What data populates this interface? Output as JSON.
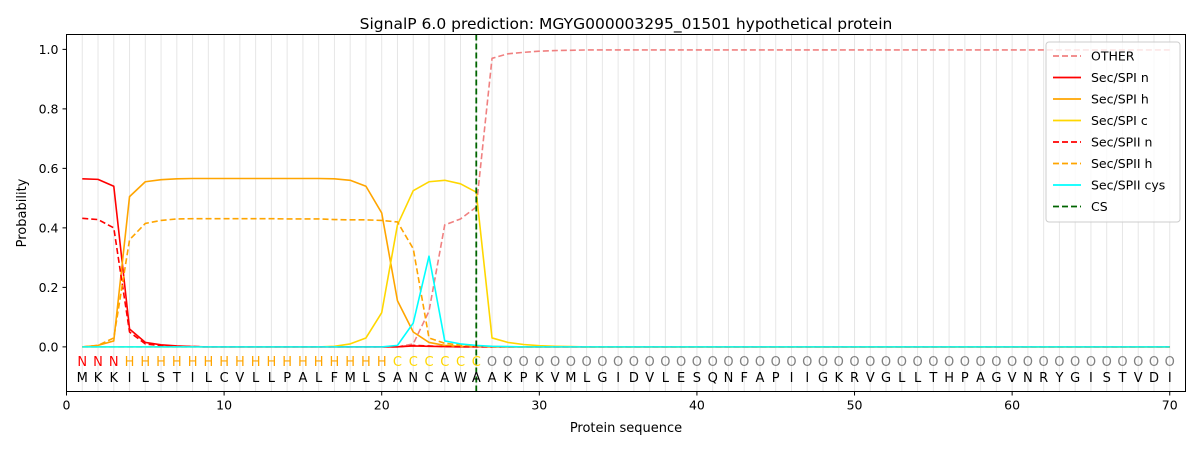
{
  "chart_data": {
    "type": "line",
    "title": "SignalP 6.0 prediction: MGYG000003295_01501 hypothetical protein",
    "xlabel": "Protein sequence",
    "ylabel": "Probability",
    "xlim": [
      0,
      71
    ],
    "ylim": [
      -0.15,
      1.05
    ],
    "x_ticks": [
      0,
      10,
      20,
      30,
      40,
      50,
      60,
      70
    ],
    "y_ticks": [
      0.0,
      0.2,
      0.4,
      0.6,
      0.8,
      1.0
    ],
    "x_tick_labels": [
      "0",
      "10",
      "20",
      "30",
      "40",
      "50",
      "60",
      "70"
    ],
    "y_tick_labels": [
      "0.0",
      "0.2",
      "0.4",
      "0.6",
      "0.8",
      "1.0"
    ],
    "grid": "vertical lines at every residue",
    "legend_position": "top-right",
    "sequence": [
      "M",
      "K",
      "K",
      "I",
      "L",
      "S",
      "T",
      "I",
      "L",
      "C",
      "V",
      "L",
      "L",
      "P",
      "A",
      "L",
      "F",
      "M",
      "L",
      "S",
      "A",
      "N",
      "C",
      "A",
      "W",
      "A",
      "A",
      "K",
      "P",
      "K",
      "V",
      "M",
      "L",
      "G",
      "I",
      "D",
      "V",
      "L",
      "E",
      "S",
      "Q",
      "N",
      "F",
      "A",
      "P",
      "I",
      "I",
      "G",
      "K",
      "R",
      "V",
      "G",
      "L",
      "L",
      "T",
      "H",
      "P",
      "A",
      "G",
      "V",
      "N",
      "R",
      "Y",
      "G",
      "I",
      "S",
      "T",
      "V",
      "D",
      "I"
    ],
    "region_labels": [
      "N",
      "N",
      "N",
      "H",
      "H",
      "H",
      "H",
      "H",
      "H",
      "H",
      "H",
      "H",
      "H",
      "H",
      "H",
      "H",
      "H",
      "H",
      "H",
      "H",
      "C",
      "C",
      "C",
      "C",
      "C",
      "C",
      "O",
      "O",
      "O",
      "O",
      "O",
      "O",
      "O",
      "O",
      "O",
      "O",
      "O",
      "O",
      "O",
      "O",
      "O",
      "O",
      "O",
      "O",
      "O",
      "O",
      "O",
      "O",
      "O",
      "O",
      "O",
      "O",
      "O",
      "O",
      "O",
      "O",
      "O",
      "O",
      "O",
      "O",
      "O",
      "O",
      "O",
      "O",
      "O",
      "O",
      "O",
      "O",
      "O",
      "O"
    ],
    "region_colors": {
      "N": "#ff0000",
      "H": "#ffa500",
      "C": "#ffd700",
      "O": "#808080"
    },
    "cleavage_site": 26,
    "series": [
      {
        "name": "OTHER",
        "color": "#f08080",
        "dash": "dashed",
        "values": [
          0.0,
          0.0,
          0.0,
          0.0,
          0.0,
          0.0,
          0.0,
          0.0,
          0.0,
          0.0,
          0.0,
          0.0,
          0.0,
          0.0,
          0.0,
          0.0,
          0.0,
          0.0,
          0.0,
          0.0,
          0.0,
          0.01,
          0.12,
          0.41,
          0.43,
          0.47,
          0.97,
          0.985,
          0.99,
          0.994,
          0.996,
          0.997,
          0.998,
          0.998,
          0.998,
          0.998,
          0.998,
          0.998,
          0.998,
          0.998,
          0.998,
          0.998,
          0.998,
          0.998,
          0.998,
          0.998,
          0.998,
          0.998,
          0.998,
          0.998,
          0.998,
          0.998,
          0.998,
          0.998,
          0.998,
          0.998,
          0.998,
          0.998,
          0.998,
          0.998,
          0.998,
          0.998,
          0.998,
          0.998,
          0.998,
          0.998,
          0.998,
          0.998,
          0.998,
          0.998
        ]
      },
      {
        "name": "Sec/SPI n",
        "color": "#ff0000",
        "dash": "solid",
        "values": [
          0.565,
          0.563,
          0.54,
          0.06,
          0.015,
          0.007,
          0.003,
          0.001,
          0.0,
          0.0,
          0.0,
          0.0,
          0.0,
          0.0,
          0.0,
          0.0,
          0.0,
          0.0,
          0.0,
          0.0,
          0.0,
          0.003,
          0.002,
          0.001,
          0.0,
          0.0,
          0.0,
          0.0,
          0.0,
          0.0,
          0.0,
          0.0,
          0.0,
          0.0,
          0.0,
          0.0,
          0.0,
          0.0,
          0.0,
          0.0,
          0.0,
          0.0,
          0.0,
          0.0,
          0.0,
          0.0,
          0.0,
          0.0,
          0.0,
          0.0,
          0.0,
          0.0,
          0.0,
          0.0,
          0.0,
          0.0,
          0.0,
          0.0,
          0.0,
          0.0,
          0.0,
          0.0,
          0.0,
          0.0,
          0.0,
          0.0,
          0.0,
          0.0,
          0.0,
          0.0
        ]
      },
      {
        "name": "Sec/SPI h",
        "color": "#ffa500",
        "dash": "solid",
        "values": [
          0.0,
          0.005,
          0.02,
          0.505,
          0.555,
          0.562,
          0.565,
          0.566,
          0.566,
          0.566,
          0.566,
          0.566,
          0.566,
          0.566,
          0.566,
          0.566,
          0.565,
          0.56,
          0.54,
          0.45,
          0.155,
          0.05,
          0.015,
          0.005,
          0.002,
          0.001,
          0.0,
          0.0,
          0.0,
          0.0,
          0.0,
          0.0,
          0.0,
          0.0,
          0.0,
          0.0,
          0.0,
          0.0,
          0.0,
          0.0,
          0.0,
          0.0,
          0.0,
          0.0,
          0.0,
          0.0,
          0.0,
          0.0,
          0.0,
          0.0,
          0.0,
          0.0,
          0.0,
          0.0,
          0.0,
          0.0,
          0.0,
          0.0,
          0.0,
          0.0,
          0.0,
          0.0,
          0.0,
          0.0,
          0.0,
          0.0,
          0.0,
          0.0,
          0.0,
          0.0
        ]
      },
      {
        "name": "Sec/SPI c",
        "color": "#ffd700",
        "dash": "solid",
        "values": [
          0.0,
          0.0,
          0.0,
          0.0,
          0.0,
          0.0,
          0.0,
          0.0,
          0.0,
          0.0,
          0.0,
          0.0,
          0.0,
          0.0,
          0.0,
          0.0,
          0.002,
          0.01,
          0.03,
          0.115,
          0.41,
          0.525,
          0.555,
          0.56,
          0.548,
          0.52,
          0.03,
          0.015,
          0.008,
          0.004,
          0.002,
          0.001,
          0.0,
          0.0,
          0.0,
          0.0,
          0.0,
          0.0,
          0.0,
          0.0,
          0.0,
          0.0,
          0.0,
          0.0,
          0.0,
          0.0,
          0.0,
          0.0,
          0.0,
          0.0,
          0.0,
          0.0,
          0.0,
          0.0,
          0.0,
          0.0,
          0.0,
          0.0,
          0.0,
          0.0,
          0.0,
          0.0,
          0.0,
          0.0,
          0.0,
          0.0,
          0.0,
          0.0,
          0.0,
          0.0
        ]
      },
      {
        "name": "Sec/SPII n",
        "color": "#ff0000",
        "dash": "dashed",
        "values": [
          0.432,
          0.428,
          0.4,
          0.05,
          0.01,
          0.004,
          0.002,
          0.001,
          0.0,
          0.0,
          0.0,
          0.0,
          0.0,
          0.0,
          0.0,
          0.0,
          0.0,
          0.0,
          0.0,
          0.0,
          0.0,
          0.005,
          0.003,
          0.001,
          0.0,
          0.0,
          0.0,
          0.0,
          0.0,
          0.0,
          0.0,
          0.0,
          0.0,
          0.0,
          0.0,
          0.0,
          0.0,
          0.0,
          0.0,
          0.0,
          0.0,
          0.0,
          0.0,
          0.0,
          0.0,
          0.0,
          0.0,
          0.0,
          0.0,
          0.0,
          0.0,
          0.0,
          0.0,
          0.0,
          0.0,
          0.0,
          0.0,
          0.0,
          0.0,
          0.0,
          0.0,
          0.0,
          0.0,
          0.0,
          0.0,
          0.0,
          0.0,
          0.0,
          0.0,
          0.0
        ]
      },
      {
        "name": "Sec/SPII h",
        "color": "#ffa500",
        "dash": "dashed",
        "values": [
          0.0,
          0.005,
          0.03,
          0.36,
          0.415,
          0.425,
          0.43,
          0.431,
          0.431,
          0.431,
          0.431,
          0.431,
          0.431,
          0.43,
          0.43,
          0.43,
          0.428,
          0.427,
          0.427,
          0.425,
          0.42,
          0.33,
          0.03,
          0.012,
          0.006,
          0.003,
          0.001,
          0.0,
          0.0,
          0.0,
          0.0,
          0.0,
          0.0,
          0.0,
          0.0,
          0.0,
          0.0,
          0.0,
          0.0,
          0.0,
          0.0,
          0.0,
          0.0,
          0.0,
          0.0,
          0.0,
          0.0,
          0.0,
          0.0,
          0.0,
          0.0,
          0.0,
          0.0,
          0.0,
          0.0,
          0.0,
          0.0,
          0.0,
          0.0,
          0.0,
          0.0,
          0.0,
          0.0,
          0.0,
          0.0,
          0.0,
          0.0,
          0.0,
          0.0,
          0.0
        ]
      },
      {
        "name": "Sec/SPII cys",
        "color": "#00ffff",
        "dash": "solid",
        "values": [
          0.0,
          0.0,
          0.0,
          0.0,
          0.0,
          0.0,
          0.0,
          0.0,
          0.0,
          0.0,
          0.0,
          0.0,
          0.0,
          0.0,
          0.0,
          0.0,
          0.0,
          0.0,
          0.0,
          0.0,
          0.005,
          0.08,
          0.305,
          0.02,
          0.01,
          0.005,
          0.002,
          0.001,
          0.0,
          0.0,
          0.0,
          0.0,
          0.0,
          0.0,
          0.0,
          0.0,
          0.0,
          0.0,
          0.0,
          0.0,
          0.0,
          0.0,
          0.0,
          0.0,
          0.0,
          0.0,
          0.0,
          0.0,
          0.0,
          0.0,
          0.0,
          0.0,
          0.0,
          0.0,
          0.0,
          0.0,
          0.0,
          0.0,
          0.0,
          0.0,
          0.0,
          0.0,
          0.0,
          0.0,
          0.0,
          0.0,
          0.0,
          0.0,
          0.0,
          0.0
        ]
      }
    ],
    "cs_line": {
      "name": "CS",
      "color": "#006400",
      "dash": "dashed"
    }
  }
}
